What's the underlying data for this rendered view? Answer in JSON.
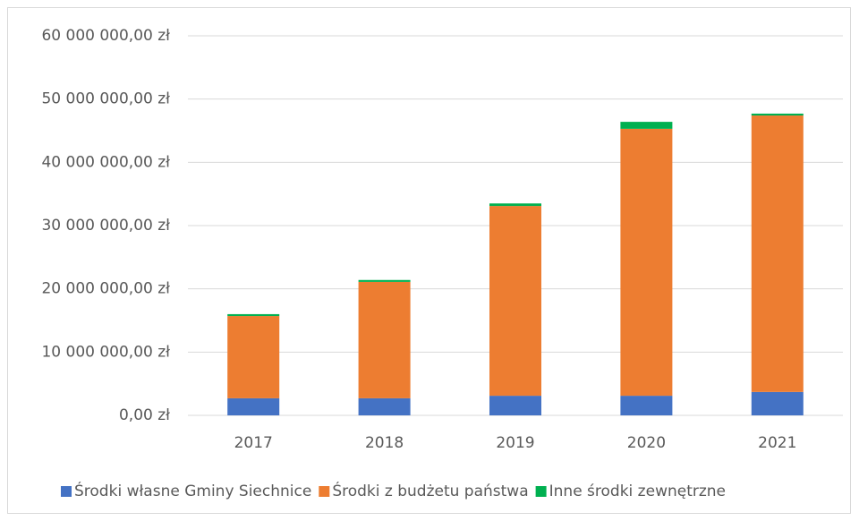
{
  "chart_data": {
    "type": "stacked_bar",
    "categories": [
      "2017",
      "2018",
      "2019",
      "2020",
      "2021"
    ],
    "series": [
      {
        "name": "Środki własne Gminy Siechnice",
        "color": "#4472c4",
        "values": [
          2700000,
          2700000,
          3100000,
          3100000,
          3700000
        ]
      },
      {
        "name": "Środki z budżetu państwa",
        "color": "#ed7d31",
        "values": [
          13000000,
          18400000,
          30000000,
          42200000,
          43700000
        ]
      },
      {
        "name": "Inne środki zewnętrzne",
        "color": "#00b050",
        "values": [
          300000,
          300000,
          400000,
          1100000,
          300000
        ]
      }
    ],
    "ylim": [
      0,
      60000000
    ],
    "yticks": [
      {
        "value": 0,
        "label": "0,00 zł"
      },
      {
        "value": 10000000,
        "label": "10 000 000,00 zł"
      },
      {
        "value": 20000000,
        "label": "20 000 000,00 zł"
      },
      {
        "value": 30000000,
        "label": "30 000 000,00 zł"
      },
      {
        "value": 40000000,
        "label": "40 000 000,00 zł"
      },
      {
        "value": 50000000,
        "label": "50 000 000,00 zł"
      },
      {
        "value": 60000000,
        "label": "60 000 000,00 zł"
      }
    ],
    "grid": true,
    "legend": "bottom"
  }
}
